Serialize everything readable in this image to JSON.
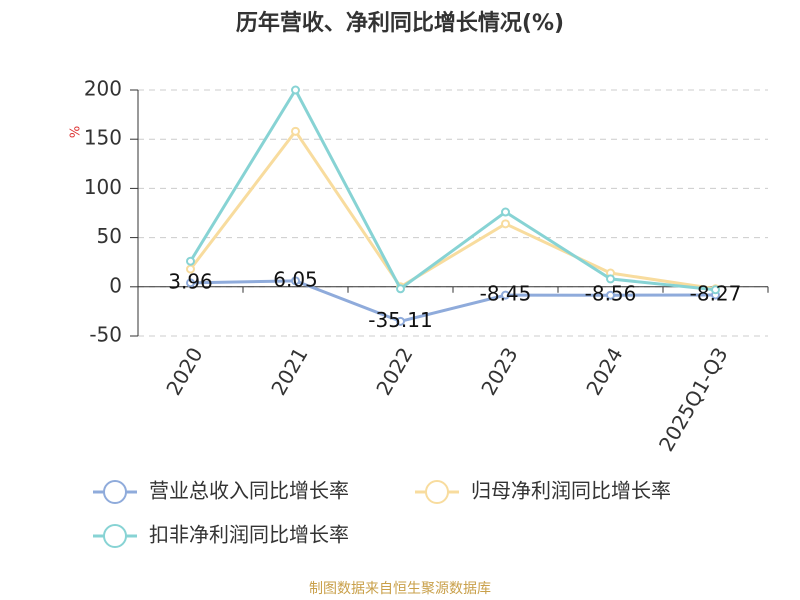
{
  "chart_data": {
    "type": "line",
    "title": "历年营收、净利同比增长情况(%)",
    "y_label": "%",
    "categories": [
      "2020",
      "2021",
      "2022",
      "2023",
      "2024",
      "2025Q1-Q3"
    ],
    "series": [
      {
        "name": "营业总收入同比增长率",
        "color": "#8fabdb",
        "values": [
          3.96,
          6.05,
          -35.11,
          -8.45,
          -8.56,
          -8.27
        ],
        "show_labels": true
      },
      {
        "name": "归母净利润同比增长率",
        "color": "#f8dc9e",
        "values": [
          18,
          158,
          0,
          64,
          14,
          -2
        ]
      },
      {
        "name": "扣非净利润同比增长率",
        "color": "#87d3d4",
        "values": [
          26,
          200,
          -2,
          76,
          8,
          -3
        ]
      }
    ],
    "ylim": [
      -50,
      200
    ],
    "yticks": [
      -50,
      0,
      50,
      100,
      150,
      200
    ],
    "grid": true,
    "source": "制图数据来自恒生聚源数据库"
  }
}
